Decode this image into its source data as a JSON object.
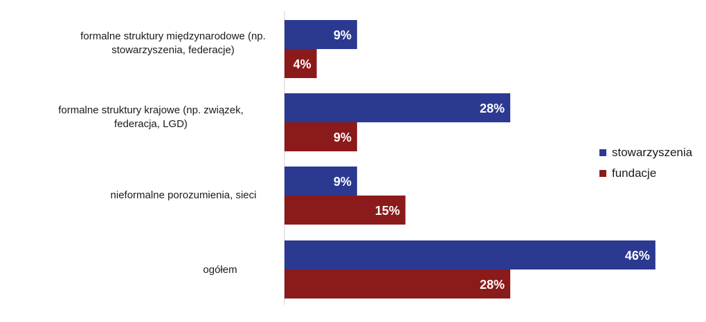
{
  "chart_data": {
    "type": "bar",
    "orientation": "horizontal",
    "categories": [
      "formalne struktury międzynarodowe (np. stowarzyszenia, federacje)",
      "formalne struktury krajowe (np. związek, federacja, LGD)",
      "nieformalne porozumienia, sieci",
      "ogółem"
    ],
    "series": [
      {
        "name": "stowarzyszenia",
        "values": [
          9,
          28,
          9,
          46
        ],
        "labels": [
          "9%",
          "28%",
          "9%",
          "46%"
        ]
      },
      {
        "name": "fundacje",
        "values": [
          4,
          9,
          15,
          28
        ],
        "labels": [
          "4%",
          "9%",
          "15%",
          "28%"
        ]
      }
    ],
    "xlim": [
      0,
      50
    ],
    "grid": false,
    "legend_position": "right"
  },
  "colors": {
    "stowarzyszenia": "#2b3990",
    "fundacje": "#8b1a1a",
    "axis": "#d0d0d0",
    "label_text": "#ffffff"
  }
}
